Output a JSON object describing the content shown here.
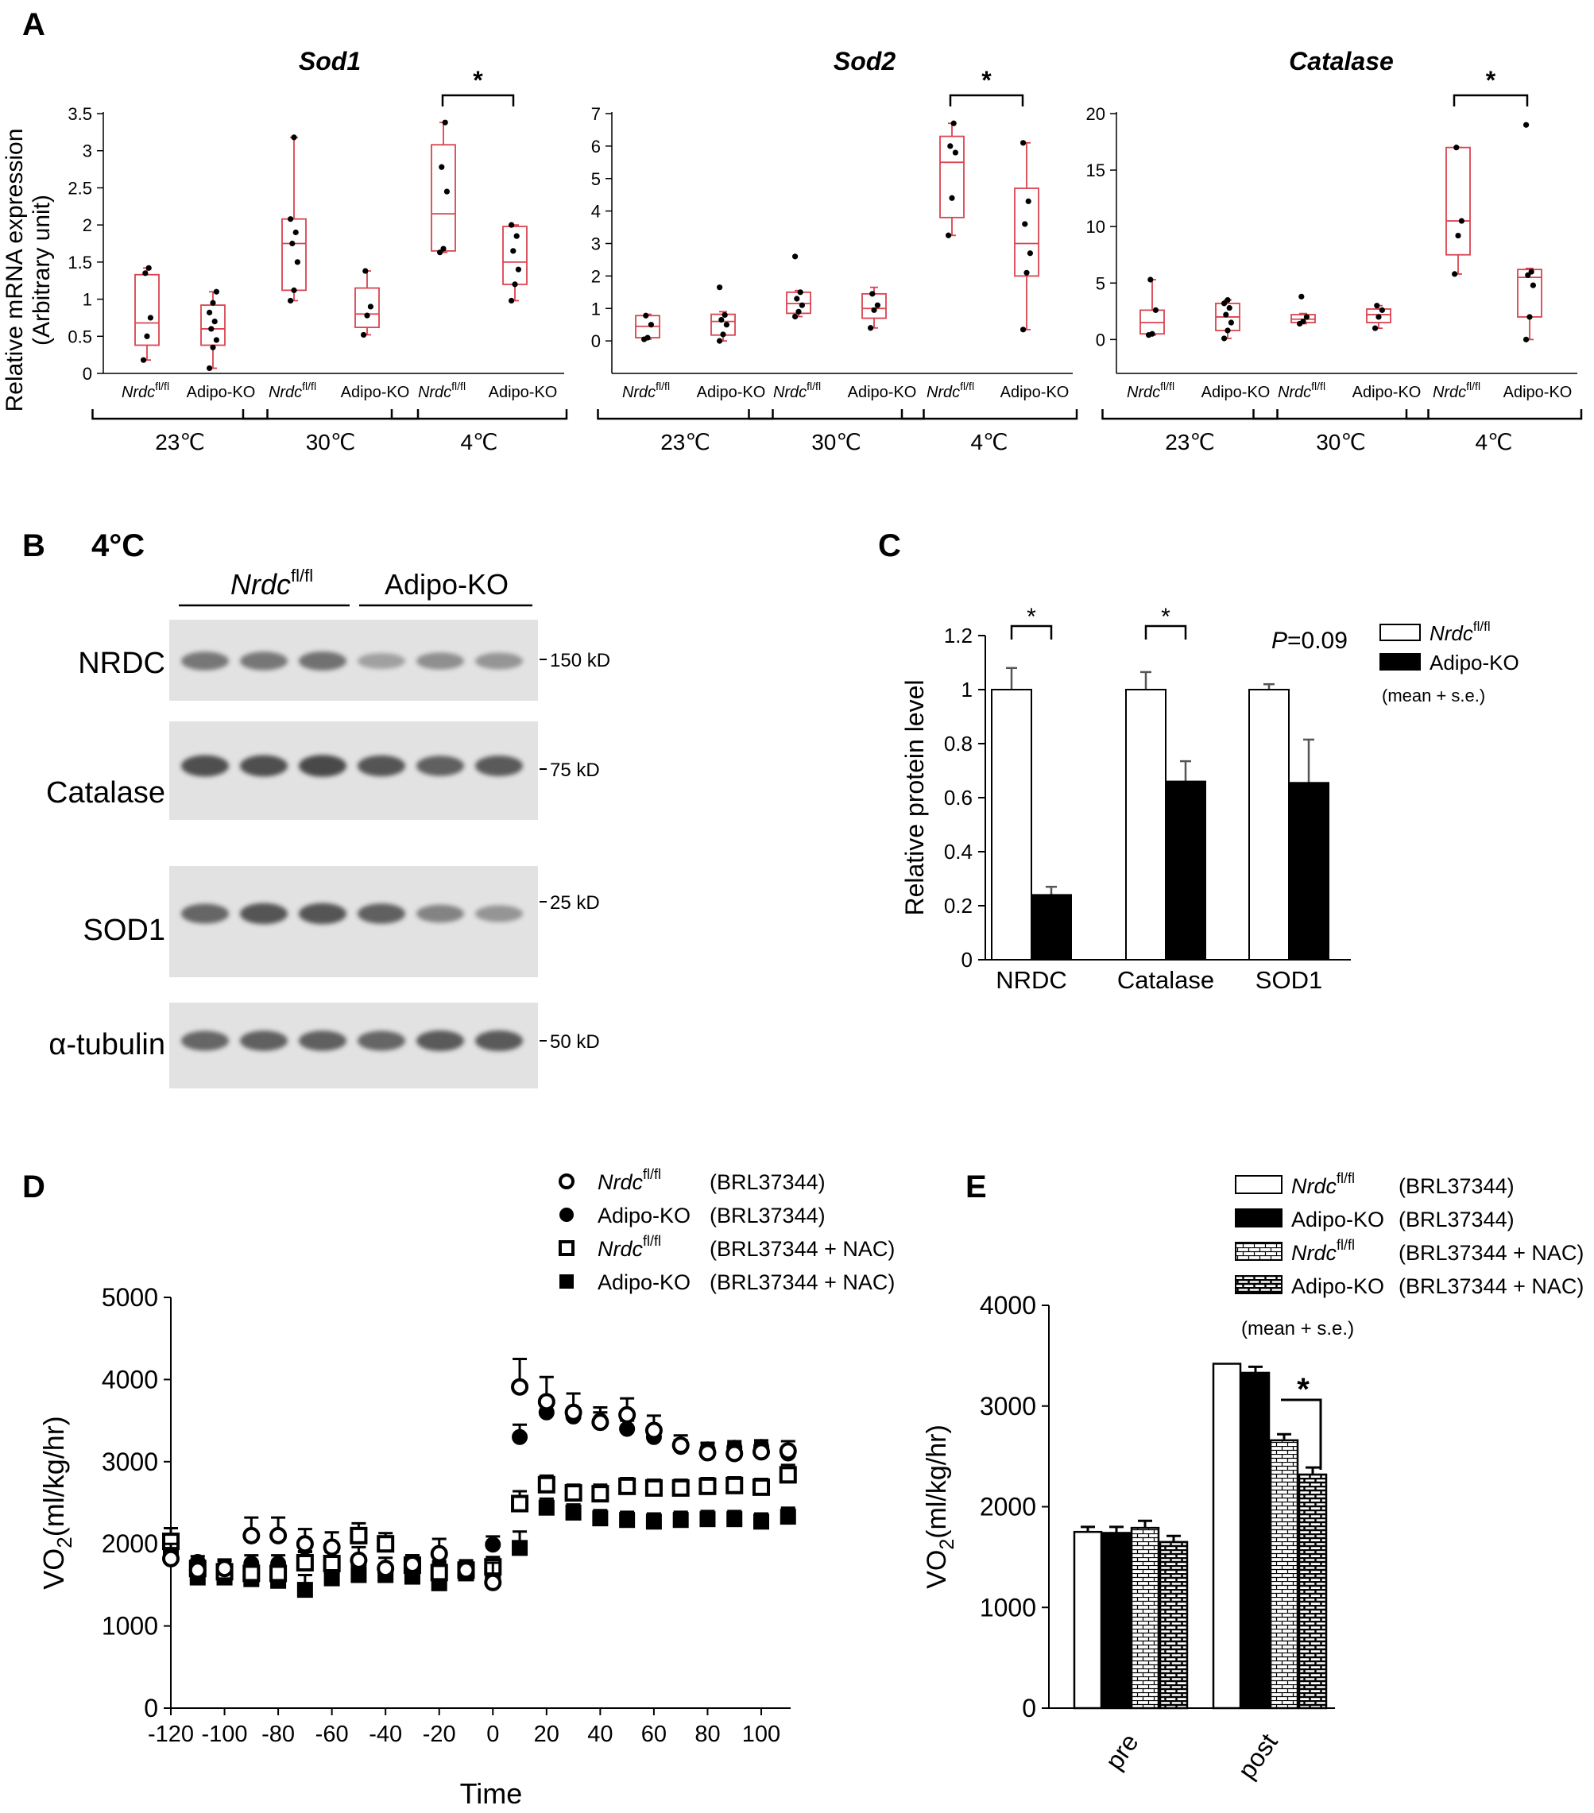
{
  "colors": {
    "box": "#d9434f",
    "ink": "#000000",
    "white": "#ffffff",
    "blot_bg": "#e2e2e2",
    "band": "#3a3a3a"
  },
  "panels": {
    "A": {
      "letter": "A",
      "y_label_1": "Relative mRNA expression",
      "y_label_2": "(Arbitrary unit)",
      "gene_label_ko": "Adipo-KO",
      "gene_label_fl_prefix": "Nrdc",
      "gene_label_fl_sup": "fl/fl",
      "star": "*",
      "temps": [
        "23℃",
        "30℃",
        "4℃"
      ]
    },
    "B": {
      "letter": "B",
      "temp": "4°C",
      "group_fl_prefix": "Nrdc",
      "group_fl_sup": "fl/fl",
      "group_ko": "Adipo-KO",
      "rows": [
        {
          "label": "NRDC",
          "marker": "150 kD",
          "intensities": [
            0.55,
            0.55,
            0.6,
            0.2,
            0.35,
            0.3
          ]
        },
        {
          "label": "Catalase",
          "marker": "75 kD",
          "intensities": [
            0.9,
            0.9,
            0.95,
            0.85,
            0.75,
            0.8
          ]
        },
        {
          "label": "SOD1",
          "marker": "25 kD",
          "intensities": [
            0.7,
            0.85,
            0.85,
            0.75,
            0.45,
            0.3
          ]
        },
        {
          "label": "α-tubulin",
          "marker": "50 kD",
          "intensities": [
            0.7,
            0.75,
            0.75,
            0.7,
            0.8,
            0.8
          ]
        }
      ]
    },
    "C": {
      "letter": "C"
    },
    "D": {
      "letter": "D"
    },
    "E": {
      "letter": "E"
    }
  },
  "chart_data": [
    {
      "id": "A-Sod1",
      "type": "box",
      "title": "Sod1",
      "ylabel": "Relative mRNA expression (Arbitrary unit)",
      "ylim": [
        0,
        3.5
      ],
      "yticks": [
        0,
        0.5,
        1,
        1.5,
        2,
        2.5,
        3,
        3.5
      ],
      "ytick_labels": [
        "0",
        "0.5",
        "1",
        "1.5",
        "2",
        "2.5",
        "3",
        "3.5"
      ],
      "groups": [
        {
          "temp": "23℃",
          "genotype": "Nrdc fl/fl",
          "min": 0.18,
          "q1": 0.38,
          "median": 0.68,
          "q3": 1.33,
          "max": 1.42,
          "points": [
            0.18,
            0.5,
            0.75,
            1.35,
            1.42
          ]
        },
        {
          "temp": "23℃",
          "genotype": "Adipo-KO",
          "min": 0.07,
          "q1": 0.38,
          "median": 0.6,
          "q3": 0.92,
          "max": 1.1,
          "points": [
            0.07,
            0.35,
            0.45,
            0.6,
            0.7,
            0.82,
            0.95,
            1.1
          ]
        },
        {
          "temp": "30℃",
          "genotype": "Nrdc fl/fl",
          "min": 0.98,
          "q1": 1.12,
          "median": 1.75,
          "q3": 2.08,
          "max": 3.18,
          "points": [
            0.98,
            1.12,
            1.5,
            1.75,
            1.9,
            2.08,
            3.18
          ]
        },
        {
          "temp": "30℃",
          "genotype": "Adipo-KO",
          "min": 0.52,
          "q1": 0.62,
          "median": 0.8,
          "q3": 1.15,
          "max": 1.38,
          "points": [
            0.52,
            0.78,
            0.9,
            1.38
          ]
        },
        {
          "temp": "4℃",
          "genotype": "Nrdc fl/fl",
          "min": 1.63,
          "q1": 1.65,
          "median": 2.15,
          "q3": 3.08,
          "max": 3.38,
          "points": [
            1.63,
            1.68,
            2.45,
            2.78,
            3.38
          ]
        },
        {
          "temp": "4℃",
          "genotype": "Adipo-KO",
          "min": 0.98,
          "q1": 1.2,
          "median": 1.5,
          "q3": 1.98,
          "max": 2.0,
          "points": [
            0.98,
            1.2,
            1.4,
            1.65,
            1.85,
            2.0
          ]
        }
      ],
      "significance": {
        "between": "4℃",
        "label": "*"
      }
    },
    {
      "id": "A-Sod2",
      "type": "box",
      "title": "Sod2",
      "ylim": [
        -1,
        7
      ],
      "yticks": [
        0,
        1,
        2,
        3,
        4,
        5,
        6,
        7
      ],
      "ytick_labels": [
        "0",
        "1",
        "2",
        "3",
        "4",
        "5",
        "6",
        "7"
      ],
      "groups": [
        {
          "temp": "23℃",
          "genotype": "Nrdc fl/fl",
          "min": 0.05,
          "q1": 0.1,
          "median": 0.45,
          "q3": 0.78,
          "max": 0.82,
          "points": [
            0.05,
            0.1,
            0.5,
            0.78
          ]
        },
        {
          "temp": "23℃",
          "genotype": "Adipo-KO",
          "min": 0.0,
          "q1": 0.18,
          "median": 0.6,
          "q3": 0.82,
          "max": 0.9,
          "points": [
            0.0,
            0.2,
            0.5,
            0.65,
            0.8,
            1.65
          ]
        },
        {
          "temp": "30℃",
          "genotype": "Nrdc fl/fl",
          "min": 0.75,
          "q1": 0.85,
          "median": 1.15,
          "q3": 1.5,
          "max": 1.55,
          "points": [
            0.75,
            0.9,
            1.1,
            1.3,
            1.5,
            2.6
          ]
        },
        {
          "temp": "30℃",
          "genotype": "Adipo-KO",
          "min": 0.4,
          "q1": 0.7,
          "median": 1.0,
          "q3": 1.45,
          "max": 1.65,
          "points": [
            0.4,
            0.95,
            1.1,
            1.45
          ]
        },
        {
          "temp": "4℃",
          "genotype": "Nrdc fl/fl",
          "min": 3.25,
          "q1": 3.8,
          "median": 5.5,
          "q3": 6.3,
          "max": 6.7,
          "points": [
            3.25,
            4.4,
            5.8,
            6.0,
            6.7
          ]
        },
        {
          "temp": "4℃",
          "genotype": "Adipo-KO",
          "min": 0.35,
          "q1": 2.0,
          "median": 3.0,
          "q3": 4.7,
          "max": 6.1,
          "points": [
            0.35,
            2.1,
            2.7,
            3.6,
            4.3,
            6.1
          ]
        }
      ],
      "significance": {
        "between": "4℃",
        "label": "*"
      }
    },
    {
      "id": "A-Catalase",
      "type": "box",
      "title": "Catalase",
      "ylim": [
        -3,
        20
      ],
      "yticks": [
        0,
        5,
        10,
        15,
        20
      ],
      "ytick_labels": [
        "0",
        "5",
        "10",
        "15",
        "20"
      ],
      "groups": [
        {
          "temp": "23℃",
          "genotype": "Nrdc fl/fl",
          "min": 0.4,
          "q1": 0.5,
          "median": 1.5,
          "q3": 2.6,
          "max": 5.3,
          "points": [
            0.4,
            0.5,
            2.6,
            5.3
          ]
        },
        {
          "temp": "23℃",
          "genotype": "Adipo-KO",
          "min": 0.1,
          "q1": 0.8,
          "median": 2.0,
          "q3": 3.2,
          "max": 3.5,
          "points": [
            0.1,
            0.8,
            1.5,
            2.2,
            2.8,
            3.2,
            3.5
          ]
        },
        {
          "temp": "30℃",
          "genotype": "Nrdc fl/fl",
          "min": 1.4,
          "q1": 1.5,
          "median": 1.8,
          "q3": 2.2,
          "max": 2.3,
          "points": [
            1.4,
            1.6,
            2.0,
            3.8
          ]
        },
        {
          "temp": "30℃",
          "genotype": "Adipo-KO",
          "min": 1.0,
          "q1": 1.5,
          "median": 2.2,
          "q3": 2.7,
          "max": 3.0,
          "points": [
            1.0,
            2.0,
            2.6,
            3.0
          ]
        },
        {
          "temp": "4℃",
          "genotype": "Nrdc fl/fl",
          "min": 5.8,
          "q1": 7.5,
          "median": 10.5,
          "q3": 17.0,
          "max": 17.0,
          "points": [
            5.8,
            9.2,
            10.5,
            17.0
          ]
        },
        {
          "temp": "4℃",
          "genotype": "Adipo-KO",
          "min": 0.0,
          "q1": 2.0,
          "median": 5.5,
          "q3": 6.2,
          "max": 6.3,
          "points": [
            0.0,
            2.0,
            4.8,
            5.7,
            6.0,
            19.0
          ]
        }
      ],
      "significance": {
        "between": "4℃",
        "label": "*"
      }
    },
    {
      "id": "C",
      "type": "bar",
      "ylabel": "Relative protein level",
      "ylim": [
        0,
        1.2
      ],
      "yticks": [
        0,
        0.2,
        0.4,
        0.6,
        0.8,
        1,
        1.2
      ],
      "ytick_labels": [
        "0",
        "0.2",
        "0.4",
        "0.6",
        "0.8",
        "1",
        "1.2"
      ],
      "categories": [
        "NRDC",
        "Catalase",
        "SOD1"
      ],
      "series": [
        {
          "name": "Nrdc fl/fl",
          "legend_prefix": "Nrdc",
          "legend_sup": "fl/fl",
          "fill": "white",
          "values": [
            1.0,
            1.0,
            1.0
          ],
          "errors": [
            0.08,
            0.065,
            0.02
          ]
        },
        {
          "name": "Adipo-KO",
          "legend_prefix": "Adipo-KO",
          "legend_sup": "",
          "fill": "black",
          "values": [
            0.24,
            0.66,
            0.655
          ],
          "errors": [
            0.03,
            0.075,
            0.16
          ]
        }
      ],
      "annotations": [
        "*",
        "*",
        "=0.09"
      ],
      "p_label": "P",
      "legend_note": "(mean + s.e.)"
    },
    {
      "id": "D",
      "type": "scatter",
      "xlabel": "Time",
      "ylabel_main": "VO",
      "ylabel_sub": "2",
      "ylabel_unit": "(ml/kg/hr)",
      "xlim": [
        -125,
        112
      ],
      "ylim": [
        0,
        5000
      ],
      "xticks": [
        -120,
        -100,
        -80,
        -60,
        -40,
        -20,
        0,
        20,
        40,
        60,
        80,
        100
      ],
      "xtick_labels": [
        "-120",
        "-100",
        "-80",
        "-60",
        "-40",
        "-20",
        "0",
        "20",
        "40",
        "60",
        "80",
        "100"
      ],
      "yticks": [
        0,
        1000,
        2000,
        3000,
        4000,
        5000
      ],
      "ytick_labels": [
        "0",
        "1000",
        "2000",
        "3000",
        "4000",
        "5000"
      ],
      "x": [
        -120,
        -110,
        -100,
        -90,
        -80,
        -70,
        -60,
        -50,
        -40,
        -30,
        -20,
        -10,
        0,
        10,
        20,
        30,
        40,
        50,
        60,
        70,
        80,
        90,
        100,
        110
      ],
      "series": [
        {
          "name": "Nrdc fl/fl (BRL37344)",
          "legend_prefix": "Nrdc",
          "legend_sup": "fl/fl",
          "legend_ko": "",
          "treatment": "(BRL37344)",
          "marker": "circle-open",
          "y": [
            1820,
            1680,
            1700,
            2100,
            2100,
            2000,
            1960,
            1800,
            1700,
            1750,
            1880,
            1680,
            1530,
            3910,
            3730,
            3600,
            3480,
            3570,
            3380,
            3200,
            3110,
            3100,
            3120,
            3130
          ],
          "err": [
            180,
            80,
            90,
            220,
            220,
            180,
            180,
            160,
            130,
            110,
            180,
            110,
            240,
            340,
            300,
            230,
            180,
            200,
            180,
            120,
            110,
            120,
            110,
            120
          ]
        },
        {
          "name": "Adipo-KO (BRL37344)",
          "legend_prefix": "",
          "legend_sup": "",
          "legend_ko": "Adipo-KO",
          "treatment": "(BRL37344)",
          "marker": "circle-filled",
          "y": [
            1940,
            1780,
            1720,
            1760,
            1760,
            1800,
            1650,
            1740,
            1660,
            1720,
            1690,
            1700,
            1990,
            3300,
            3600,
            3550,
            3500,
            3400,
            3300,
            3180,
            3150,
            3170,
            3180,
            3100
          ],
          "err": [
            100,
            70,
            90,
            100,
            100,
            100,
            90,
            90,
            80,
            80,
            100,
            100,
            100,
            150,
            120,
            100,
            100,
            100,
            100,
            80,
            80,
            80,
            80,
            80
          ]
        },
        {
          "name": "Nrdc fl/fl (BRL37344 + NAC)",
          "legend_prefix": "Nrdc",
          "legend_sup": "fl/fl",
          "legend_ko": "",
          "treatment": "(BRL37344 + NAC)",
          "marker": "square-open",
          "y": [
            2030,
            1700,
            1660,
            1640,
            1640,
            1770,
            1760,
            2100,
            2000,
            1740,
            1650,
            1680,
            1720,
            2490,
            2720,
            2620,
            2610,
            2700,
            2680,
            2680,
            2700,
            2710,
            2690,
            2840
          ],
          "err": [
            160,
            90,
            80,
            80,
            80,
            140,
            140,
            150,
            130,
            120,
            120,
            100,
            120,
            150,
            110,
            100,
            110,
            100,
            100,
            100,
            100,
            100,
            100,
            120
          ]
        },
        {
          "name": "Adipo-KO (BRL37344 + NAC)",
          "legend_prefix": "",
          "legend_sup": "",
          "legend_ko": "Adipo-KO",
          "treatment": "(BRL37344 + NAC)",
          "marker": "square-filled",
          "y": [
            1880,
            1590,
            1590,
            1570,
            1550,
            1440,
            1580,
            1620,
            1620,
            1600,
            1520,
            1640,
            1620,
            1950,
            2440,
            2380,
            2310,
            2290,
            2270,
            2290,
            2300,
            2300,
            2270,
            2330
          ],
          "err": [
            120,
            80,
            80,
            90,
            100,
            180,
            120,
            100,
            100,
            100,
            160,
            120,
            100,
            200,
            110,
            100,
            100,
            100,
            100,
            100,
            100,
            100,
            100,
            110
          ]
        }
      ]
    },
    {
      "id": "E",
      "type": "bar",
      "ylabel_main": "VO",
      "ylabel_sub": "2",
      "ylabel_unit": "(ml/kg/hr)",
      "ylim": [
        0,
        4000
      ],
      "yticks": [
        0,
        1000,
        2000,
        3000,
        4000
      ],
      "ytick_labels": [
        "0",
        "1000",
        "2000",
        "3000",
        "4000"
      ],
      "categories": [
        "pre",
        "post"
      ],
      "series": [
        {
          "name": "Nrdc fl/fl (BRL37344)",
          "legend_prefix": "Nrdc",
          "legend_sup": "fl/fl",
          "legend_ko": "",
          "treatment": "(BRL37344)",
          "fill": "white",
          "values": [
            1750,
            3420
          ],
          "errors": [
            50,
            0
          ]
        },
        {
          "name": "Adipo-KO (BRL37344)",
          "legend_prefix": "",
          "legend_sup": "",
          "legend_ko": "Adipo-KO",
          "treatment": "(BRL37344)",
          "fill": "black",
          "values": [
            1740,
            3330
          ],
          "errors": [
            60,
            60
          ]
        },
        {
          "name": "Nrdc fl/fl (BRL37344 + NAC)",
          "legend_prefix": "Nrdc",
          "legend_sup": "fl/fl",
          "legend_ko": "",
          "treatment": "(BRL37344 + NAC)",
          "fill": "brick-light",
          "values": [
            1790,
            2660
          ],
          "errors": [
            70,
            60
          ]
        },
        {
          "name": "Adipo-KO (BRL37344 + NAC)",
          "legend_prefix": "",
          "legend_sup": "",
          "legend_ko": "Adipo-KO",
          "treatment": "(BRL37344 + NAC)",
          "fill": "brick-dark",
          "values": [
            1650,
            2320
          ],
          "errors": [
            60,
            70
          ]
        }
      ],
      "significance": {
        "category": "post",
        "label": "*"
      },
      "legend_note": "(mean + s.e.)"
    }
  ]
}
